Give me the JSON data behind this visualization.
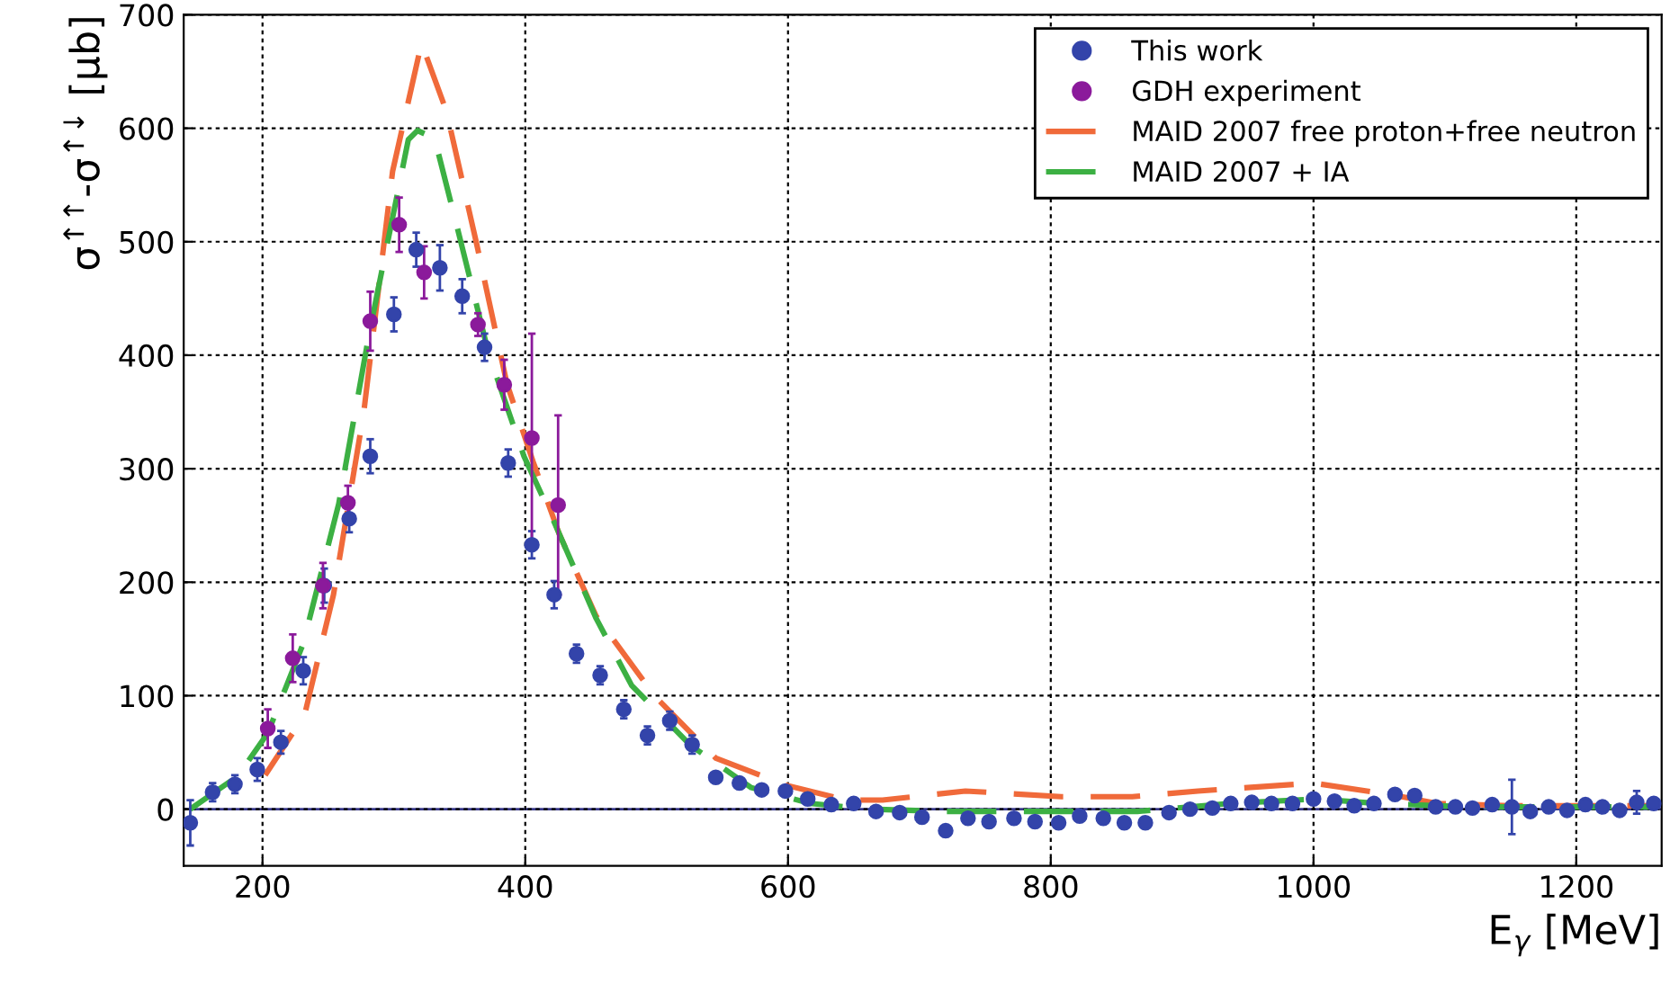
{
  "chart_data": {
    "type": "scatter",
    "xlabel": "E$_{γ}$ [MeV]",
    "ylabel": "σ$^{↑↑}$-σ$^{↑↓}$ [μb]",
    "xlim": [
      140,
      1265
    ],
    "ylim": [
      -50,
      700
    ],
    "xticks": [
      200,
      400,
      600,
      800,
      1000,
      1200
    ],
    "yticks": [
      0,
      100,
      200,
      300,
      400,
      500,
      600,
      700
    ],
    "grid": true,
    "legend": "top right",
    "ref_lines": [
      {
        "axis": "y",
        "value": 0,
        "color": "#3a3a8c",
        "line_style": "solid"
      }
    ],
    "series": [
      {
        "name": "This work",
        "color": "#3344aa",
        "marker": "circle",
        "x": [
          145,
          162,
          179,
          196,
          214,
          231,
          247,
          266,
          282,
          300,
          317,
          335,
          352,
          369,
          387,
          405,
          422,
          439,
          457,
          475,
          493,
          510,
          527,
          545,
          563,
          580,
          598,
          615,
          633,
          650,
          667,
          685,
          702,
          720,
          737,
          753,
          772,
          788,
          806,
          822,
          840,
          856,
          872,
          890,
          906,
          923,
          937,
          953,
          968,
          984,
          1000,
          1016,
          1031,
          1046,
          1062,
          1077,
          1093,
          1108,
          1121,
          1136,
          1151,
          1165,
          1179,
          1193,
          1207,
          1220,
          1233,
          1246,
          1259
        ],
        "values": [
          -12,
          15,
          22,
          35,
          59,
          122,
          197,
          256,
          311,
          436,
          493,
          477,
          452,
          407,
          305,
          233,
          189,
          137,
          118,
          88,
          65,
          78,
          57,
          28,
          23,
          17,
          16,
          9,
          4,
          5,
          -2,
          -3,
          -7,
          -19,
          -8,
          -11,
          -8,
          -11,
          -12,
          -6,
          -8,
          -12,
          -12,
          -3,
          0,
          1,
          5,
          6,
          5,
          5,
          9,
          7,
          3,
          5,
          13,
          12,
          2,
          2,
          1,
          4,
          2,
          -2,
          2,
          -1,
          4,
          2,
          -1,
          6,
          5
        ],
        "errors": [
          20,
          8,
          8,
          10,
          10,
          12,
          15,
          12,
          15,
          15,
          15,
          20,
          15,
          12,
          12,
          12,
          12,
          8,
          8,
          8,
          8,
          8,
          8,
          null,
          null,
          null,
          null,
          null,
          null,
          null,
          null,
          null,
          null,
          null,
          null,
          null,
          null,
          null,
          null,
          null,
          null,
          null,
          null,
          null,
          null,
          null,
          null,
          null,
          null,
          null,
          null,
          null,
          null,
          null,
          null,
          null,
          null,
          null,
          null,
          null,
          24,
          null,
          null,
          null,
          null,
          null,
          null,
          10,
          null
        ]
      },
      {
        "name": "GDH experiment",
        "color": "#8b1a9b",
        "marker": "circle",
        "x": [
          204,
          223,
          246,
          265,
          282,
          304,
          323,
          364,
          384,
          405,
          425
        ],
        "values": [
          71,
          133,
          197,
          270,
          430,
          515,
          473,
          427,
          374,
          327,
          268
        ],
        "errors": [
          17,
          21,
          20,
          15,
          26,
          24,
          23,
          10,
          22,
          92,
          79
        ]
      },
      {
        "name": "MAID 2007 free proton+free neutron",
        "type": "line",
        "color": "#f06a3a",
        "line_style": "dashed",
        "x": [
          202,
          232,
          254,
          277,
          299,
          321,
          340,
          363,
          386,
          406,
          426,
          454,
          499,
          545,
          599,
          644,
          672,
          735,
          808,
          862,
          912,
          1000,
          1058,
          1094,
          1150,
          1260
        ],
        "values": [
          30,
          83,
          189,
          349,
          562,
          675,
          615,
          498,
          375,
          306,
          242,
          170,
          99,
          45,
          21,
          8,
          8,
          16,
          11,
          11,
          16,
          23,
          13,
          5,
          3,
          3
        ]
      },
      {
        "name": "MAID 2007 + IA",
        "type": "line",
        "color": "#3cb043",
        "line_style": "dashed",
        "x": [
          145,
          181,
          204,
          231,
          258,
          281,
          311,
          318,
          331,
          349,
          372,
          399,
          422,
          454,
          481,
          526,
          572,
          617,
          663,
          720,
          800,
          866,
          935,
          1003,
          1049,
          1120,
          1260
        ],
        "values": [
          0,
          29,
          67,
          146,
          269,
          418,
          590,
          598,
          591,
          509,
          402,
          311,
          253,
          168,
          109,
          56,
          19,
          5,
          0,
          -2,
          -2,
          -2,
          5,
          9,
          5,
          2,
          2
        ]
      }
    ]
  }
}
